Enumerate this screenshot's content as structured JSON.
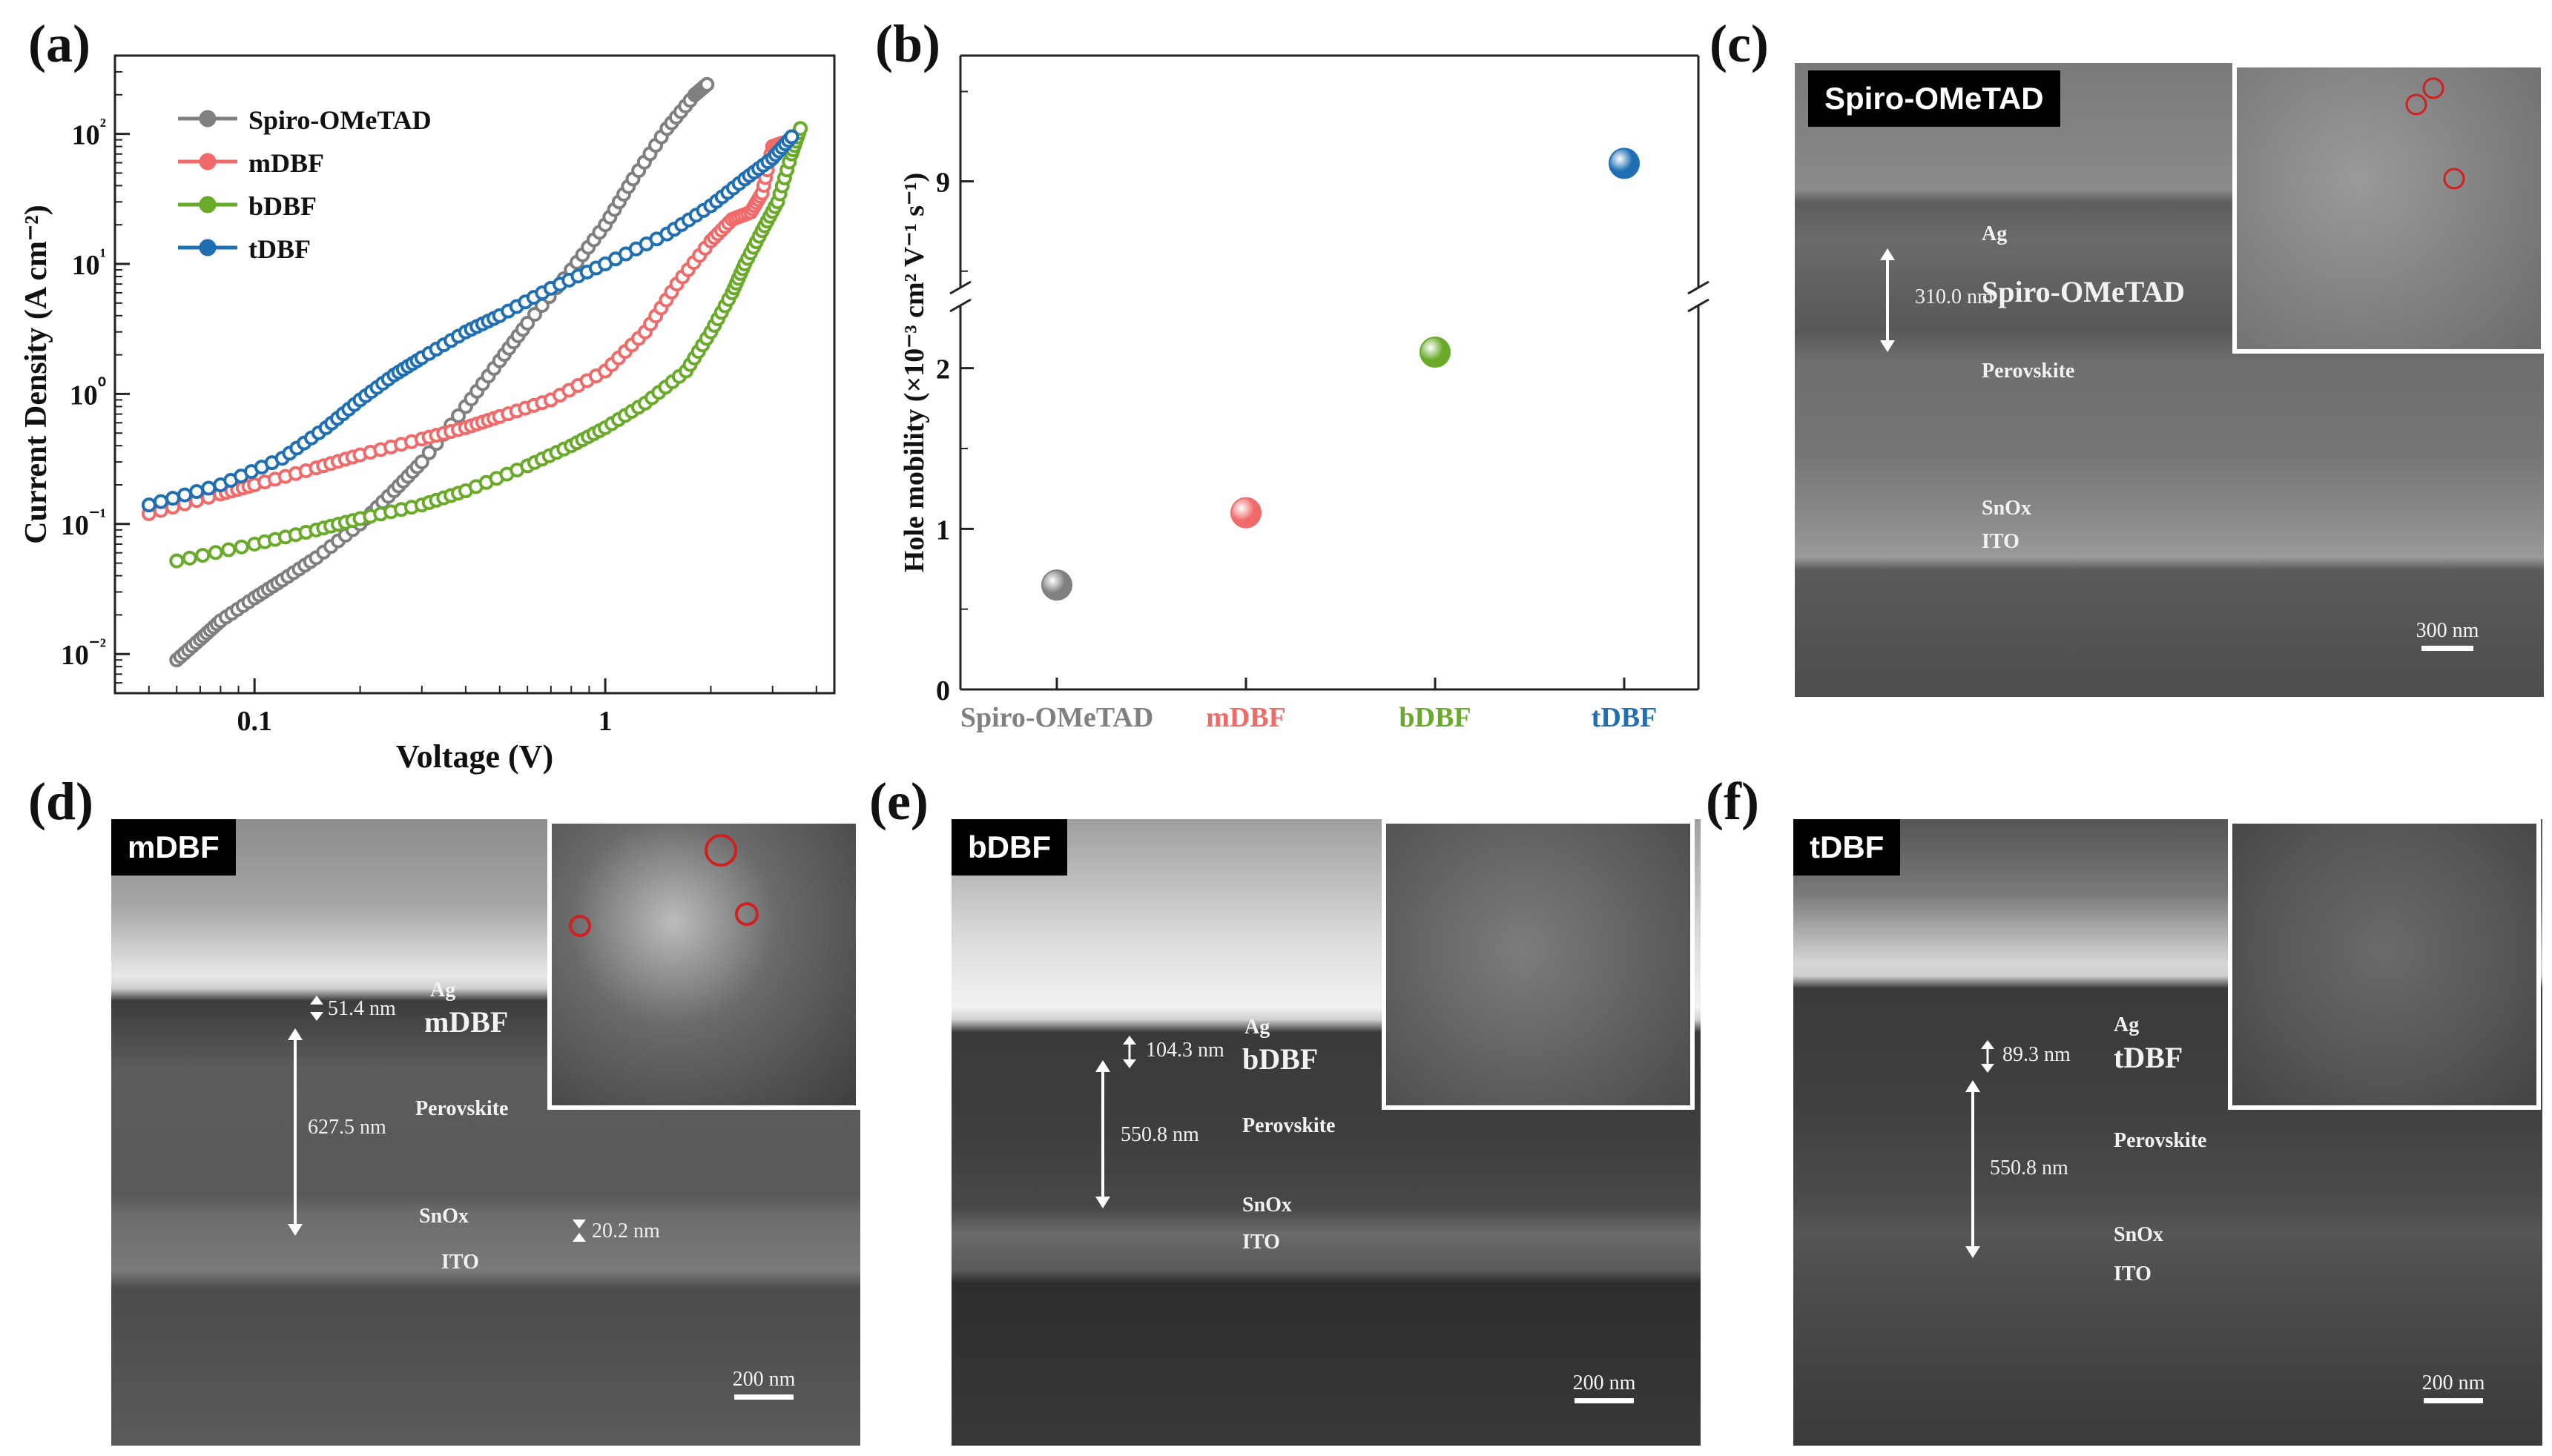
{
  "panels": {
    "a": "(a)",
    "b": "(b)",
    "c": "(c)",
    "d": "(d)",
    "e": "(e)",
    "f": "(f)"
  },
  "chart_data": [
    {
      "type": "line",
      "panel": "a",
      "xlabel": "Voltage (V)",
      "ylabel": "Current Density (A cm⁻²)",
      "xscale": "log",
      "yscale": "log",
      "xlim": [
        0.04,
        4.5
      ],
      "ylim": [
        0.005,
        400
      ],
      "xticks": [
        {
          "v": 0.1,
          "label": "0.1"
        },
        {
          "v": 1,
          "label": "1"
        }
      ],
      "yticks": [
        {
          "v": 0.01,
          "label": "10⁻²"
        },
        {
          "v": 0.1,
          "label": "10⁻¹"
        },
        {
          "v": 1,
          "label": "10⁰"
        },
        {
          "v": 10,
          "label": "10¹"
        },
        {
          "v": 100,
          "label": "10²"
        }
      ],
      "legend_position": "top-left",
      "series": [
        {
          "name": "Spiro-OMeTAD",
          "color": "#7f7f7f",
          "x": [
            0.06,
            0.07,
            0.08,
            0.1,
            0.12,
            0.15,
            0.2,
            0.25,
            0.3,
            0.4,
            0.5,
            0.6,
            0.8,
            1.0,
            1.2,
            1.5,
            1.8,
            1.95
          ],
          "y": [
            0.009,
            0.013,
            0.018,
            0.027,
            0.037,
            0.055,
            0.1,
            0.18,
            0.3,
            0.8,
            1.8,
            3.5,
            9,
            20,
            45,
            110,
            200,
            240
          ]
        },
        {
          "name": "mDBF",
          "color": "#f06a6a",
          "x": [
            0.05,
            0.08,
            0.1,
            0.15,
            0.2,
            0.3,
            0.4,
            0.5,
            0.7,
            1.0,
            1.3,
            1.6,
            2.0,
            2.3,
            2.6,
            2.8,
            3.0,
            3.2
          ],
          "y": [
            0.12,
            0.17,
            0.2,
            0.27,
            0.34,
            0.45,
            0.55,
            0.67,
            0.9,
            1.5,
            3.0,
            7,
            15,
            22,
            25,
            35,
            80,
            85
          ]
        },
        {
          "name": "bDBF",
          "color": "#6aaa2a",
          "x": [
            0.06,
            0.1,
            0.15,
            0.2,
            0.3,
            0.4,
            0.6,
            0.8,
            1.0,
            1.3,
            1.7,
            2.0,
            2.3,
            2.5,
            2.8,
            3.1,
            3.4,
            3.6
          ],
          "y": [
            0.052,
            0.07,
            0.09,
            0.11,
            0.14,
            0.18,
            0.28,
            0.4,
            0.55,
            0.85,
            1.5,
            3,
            6,
            10,
            18,
            30,
            70,
            110
          ]
        },
        {
          "name": "tDBF",
          "color": "#1f6fb2",
          "x": [
            0.05,
            0.08,
            0.12,
            0.16,
            0.2,
            0.25,
            0.3,
            0.4,
            0.5,
            0.7,
            1.0,
            1.5,
            2.0,
            2.5,
            3.0,
            3.4
          ],
          "y": [
            0.14,
            0.2,
            0.32,
            0.55,
            0.9,
            1.4,
            1.9,
            3.0,
            4.0,
            6.5,
            10,
            17,
            28,
            45,
            65,
            95
          ]
        }
      ]
    },
    {
      "type": "scatter",
      "panel": "b",
      "ylabel": "Hole mobility (×10⁻³ cm² V⁻¹ s⁻¹)",
      "categories": [
        "Spiro-OMeTAD",
        "mDBF",
        "bDBF",
        "tDBF"
      ],
      "category_colors": [
        "#808080",
        "#f06a6a",
        "#6aaa2a",
        "#1f6fb2"
      ],
      "values": [
        0.65,
        1.1,
        2.1,
        9.1
      ],
      "ylim_lower": [
        0,
        2.4
      ],
      "ylim_upper": [
        8.4,
        9.7
      ],
      "yticks": [
        {
          "v": 0,
          "label": "0"
        },
        {
          "v": 1,
          "label": "1"
        },
        {
          "v": 2,
          "label": "2"
        },
        {
          "v": 9,
          "label": "9"
        }
      ],
      "axis_break": "between 2.4 and 8.4"
    }
  ],
  "sem": {
    "c": {
      "tag": "Spiro-OMeTAD",
      "ag": "Ag",
      "htl": "Spiro-OMeTAD",
      "perovskite": "Perovskite",
      "snox": "SnOx",
      "ito": "ITO",
      "thickness": "310.0 nm",
      "scale": "300 nm"
    },
    "d": {
      "tag": "mDBF",
      "ag": "Ag",
      "htl": "mDBF",
      "perovskite": "Perovskite",
      "snox": "SnOx",
      "ito": "ITO",
      "htl_thickness": "51.4 nm",
      "pvk_thickness": "627.5 nm",
      "snox_thickness": "20.2 nm",
      "scale": "200 nm"
    },
    "e": {
      "tag": "bDBF",
      "ag": "Ag",
      "htl": "bDBF",
      "perovskite": "Perovskite",
      "snox": "SnOx",
      "ito": "ITO",
      "htl_thickness": "104.3 nm",
      "pvk_thickness": "550.8 nm",
      "scale": "200 nm"
    },
    "f": {
      "tag": "tDBF",
      "ag": "Ag",
      "htl": "tDBF",
      "perovskite": "Perovskite",
      "snox": "SnOx",
      "ito": "ITO",
      "htl_thickness": "89.3 nm",
      "pvk_thickness": "550.8 nm",
      "scale": "200 nm"
    }
  }
}
